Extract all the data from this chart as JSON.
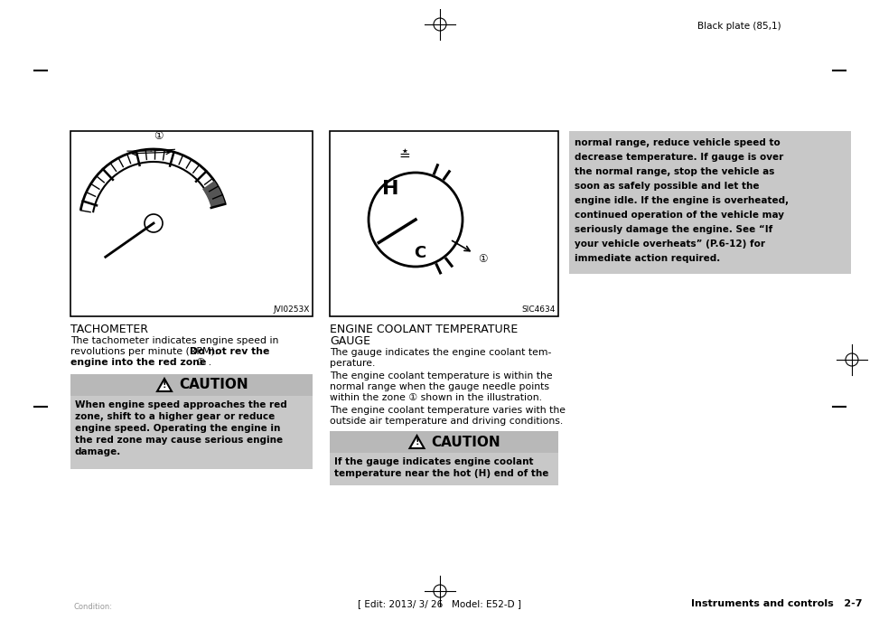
{
  "bg_color": "#ffffff",
  "gray_box_color": "#c8c8c8",
  "caution_header_color": "#b8b8b8",
  "top_label": "Black plate (85,1)",
  "bottom_label": "[ Edit: 2013/ 3/ 26   Model: E52-D ]",
  "footer_right": "Instruments and controls   2-7",
  "footer_left": "Condition:",
  "left_image_label": "JVI0253X",
  "right_image_label": "SIC4634",
  "tachometer_title": "TACHOMETER",
  "coolant_title_line1": "ENGINE COOLANT TEMPERATURE",
  "coolant_title_line2": "GAUGE",
  "caution_header": "CAUTION",
  "caution1_line1": "When engine speed approaches the red",
  "caution1_line2": "zone, shift to a higher gear or reduce",
  "caution1_line3": "engine speed. Operating the engine in",
  "caution1_line4": "the red zone may cause serious engine",
  "caution1_line5": "damage.",
  "caution2_line1": "If the gauge indicates engine coolant",
  "caution2_line2": "temperature near the hot (H) end of the",
  "right_box_line1": "normal range, reduce vehicle speed to",
  "right_box_line2": "decrease temperature. If gauge is over",
  "right_box_line3": "the normal range, stop the vehicle as",
  "right_box_line4": "soon as safely possible and let the",
  "right_box_line5": "engine idle. If the engine is overheated,",
  "right_box_line6": "continued operation of the vehicle may",
  "right_box_line7": "seriously damage the engine. See “If",
  "right_box_line8": "your vehicle overheats” (P.6-12) for",
  "right_box_line9": "immediate action required.",
  "tach_text_line1": "The tachometer indicates engine speed in",
  "tach_text_line2": "revolutions per minute (RPM). ",
  "tach_text_line2b": "Do not rev the",
  "tach_text_line3": "engine into the red zone",
  "tach_text_line3b": " ① .",
  "cool_text1_line1": "The gauge indicates the engine coolant tem-",
  "cool_text1_line2": "perature.",
  "cool_text2_line1": "The engine coolant temperature is within the",
  "cool_text2_line2": "normal range when the gauge needle points",
  "cool_text2_line3": "within the zone ① shown in the illustration.",
  "cool_text3_line1": "The engine coolant temperature varies with the",
  "cool_text3_line2": "outside air temperature and driving conditions."
}
